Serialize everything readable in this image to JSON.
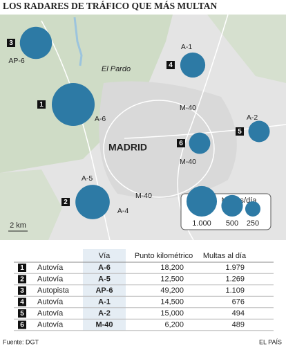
{
  "title": "LOS RADARES DE TRÁFICO QUE MÁS MULTAN",
  "map": {
    "place_labels": [
      "El Pardo",
      "MADRID"
    ],
    "road_labels": [
      "AP-6",
      "A-1",
      "A-6",
      "M-40",
      "A-2",
      "M-40",
      "A-5",
      "A-4",
      "M-40"
    ],
    "scale": "2 km",
    "legend": {
      "title": "Multas/día",
      "sizes": [
        {
          "value": 1000,
          "label": "1.000"
        },
        {
          "value": 500,
          "label": "500"
        },
        {
          "value": 250,
          "label": "250"
        }
      ]
    }
  },
  "table": {
    "headers": [
      "Vía",
      "Punto kilométrico",
      "Multas al día"
    ],
    "rows": [
      {
        "rank": "1",
        "type": "Autovía",
        "road": "A-6",
        "km": "18,200",
        "fines": {
          "value": 1979,
          "label": "1.979"
        }
      },
      {
        "rank": "2",
        "type": "Autovía",
        "road": "A-5",
        "km": "12,500",
        "fines": {
          "value": 1269,
          "label": "1.269"
        }
      },
      {
        "rank": "3",
        "type": "Autopista",
        "road": "AP-6",
        "km": "49,200",
        "fines": {
          "value": 1109,
          "label": "1.109"
        }
      },
      {
        "rank": "4",
        "type": "Autovía",
        "road": "A-1",
        "km": "14,500",
        "fines": {
          "value": 676,
          "label": "676"
        }
      },
      {
        "rank": "5",
        "type": "Autovía",
        "road": "A-2",
        "km": "15,000",
        "fines": {
          "value": 494,
          "label": "494"
        }
      },
      {
        "rank": "6",
        "type": "Autovía",
        "road": "M-40",
        "km": "6,200",
        "fines": {
          "value": 489,
          "label": "489"
        }
      }
    ]
  },
  "footer": {
    "source": "Fuente: DGT",
    "publisher": "EL PAÍS"
  }
}
